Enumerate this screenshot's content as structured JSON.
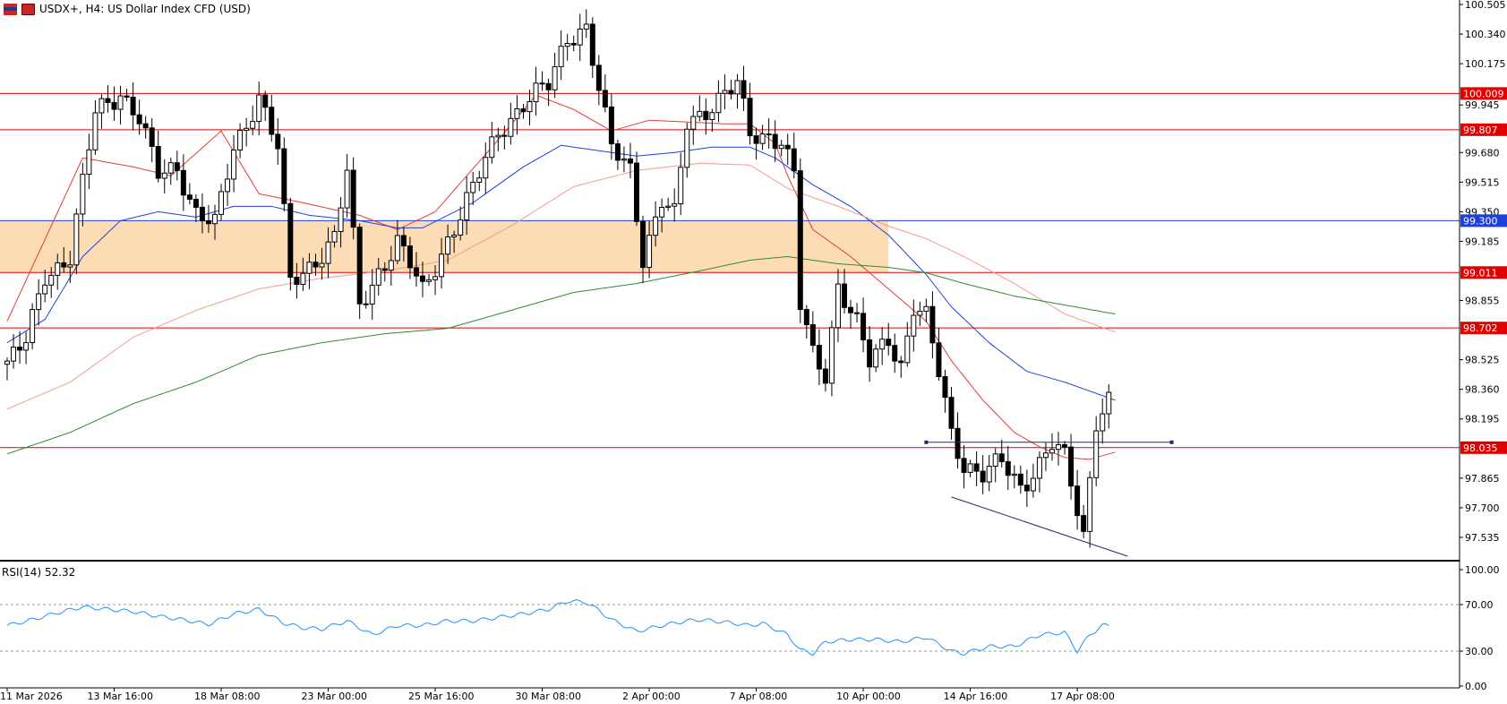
{
  "header": {
    "symbol": "USDX+",
    "timeframe": "H4:",
    "description": "US Dollar Index CFD (USD)",
    "icons": [
      "flag-icon",
      "chart-icon"
    ]
  },
  "chart_data": {
    "type": "candlestick",
    "price_axis": {
      "ylim": [
        97.41,
        100.52
      ],
      "ticks": [
        100.505,
        100.34,
        100.175,
        99.945,
        99.68,
        99.515,
        99.35,
        99.185,
        98.855,
        98.525,
        98.36,
        98.195,
        97.865,
        97.7,
        97.535
      ]
    },
    "time_axis": {
      "bars": 200,
      "labels": [
        {
          "text": "11 Mar 2026",
          "bar": 0
        },
        {
          "text": "13 Mar 16:00",
          "bar": 17
        },
        {
          "text": "18 Mar 08:00",
          "bar": 34
        },
        {
          "text": "23 Mar 00:00",
          "bar": 51
        },
        {
          "text": "25 Mar 16:00",
          "bar": 68
        },
        {
          "text": "30 Mar 08:00",
          "bar": 85
        },
        {
          "text": "2 Apr 00:00",
          "bar": 102
        },
        {
          "text": "7 Apr 08:00",
          "bar": 119
        },
        {
          "text": "10 Apr 00:00",
          "bar": 136
        },
        {
          "text": "14 Apr 16:00",
          "bar": 153
        },
        {
          "text": "17 Apr 08:00",
          "bar": 170
        }
      ]
    },
    "horizontal_lines": [
      {
        "price": 100.009,
        "label": "100.009",
        "color": "#e00000"
      },
      {
        "price": 99.807,
        "label": "99.807",
        "color": "#e00000"
      },
      {
        "price": 99.3,
        "label": "99.300",
        "color": "#1f3fd9"
      },
      {
        "price": 99.011,
        "label": "99.011",
        "color": "#e00000"
      },
      {
        "price": 98.702,
        "label": "98.702",
        "color": "#e00000"
      },
      {
        "price": 98.035,
        "label": "98.035",
        "color": "#e00000"
      }
    ],
    "zone": {
      "from_bar": 0,
      "to_bar": 140,
      "top": 99.3,
      "bottom": 99.011,
      "color": "#fcdcb4"
    },
    "trendlines": [
      {
        "from": {
          "bar": 150,
          "price": 97.76
        },
        "to": {
          "bar": 178,
          "price": 97.43
        },
        "color": "#1f2a6b"
      },
      {
        "from": {
          "bar": 146,
          "price": 98.065
        },
        "to": {
          "bar": 185,
          "price": 98.065
        },
        "color": "#1f2a6b",
        "handles": true
      }
    ],
    "moving_averages": [
      {
        "key": "ma_fast",
        "color": "#e53935",
        "anchors": [
          [
            0,
            98.74
          ],
          [
            12,
            99.65
          ],
          [
            20,
            99.6
          ],
          [
            26,
            99.55
          ],
          [
            34,
            99.8
          ],
          [
            40,
            99.45
          ],
          [
            47,
            99.4
          ],
          [
            56,
            99.33
          ],
          [
            62,
            99.25
          ],
          [
            68,
            99.35
          ],
          [
            78,
            99.75
          ],
          [
            84,
            100.0
          ],
          [
            90,
            99.92
          ],
          [
            96,
            99.8
          ],
          [
            102,
            99.86
          ],
          [
            108,
            99.85
          ],
          [
            114,
            99.84
          ],
          [
            118,
            99.84
          ],
          [
            122,
            99.73
          ],
          [
            124,
            99.55
          ],
          [
            128,
            99.25
          ],
          [
            134,
            99.1
          ],
          [
            140,
            98.92
          ],
          [
            146,
            98.74
          ],
          [
            150,
            98.52
          ],
          [
            155,
            98.3
          ],
          [
            160,
            98.12
          ],
          [
            164,
            98.04
          ],
          [
            168,
            97.98
          ],
          [
            172,
            97.97
          ],
          [
            176,
            98.01
          ]
        ]
      },
      {
        "key": "ma_mid",
        "color": "#1f3fd9",
        "anchors": [
          [
            0,
            98.62
          ],
          [
            6,
            98.75
          ],
          [
            12,
            99.1
          ],
          [
            18,
            99.3
          ],
          [
            24,
            99.35
          ],
          [
            30,
            99.32
          ],
          [
            36,
            99.38
          ],
          [
            42,
            99.38
          ],
          [
            48,
            99.33
          ],
          [
            56,
            99.3
          ],
          [
            62,
            99.26
          ],
          [
            66,
            99.26
          ],
          [
            74,
            99.4
          ],
          [
            82,
            99.6
          ],
          [
            88,
            99.72
          ],
          [
            94,
            99.69
          ],
          [
            100,
            99.66
          ],
          [
            106,
            99.68
          ],
          [
            112,
            99.71
          ],
          [
            118,
            99.71
          ],
          [
            122,
            99.65
          ],
          [
            128,
            99.5
          ],
          [
            134,
            99.38
          ],
          [
            140,
            99.22
          ],
          [
            146,
            99.0
          ],
          [
            150,
            98.82
          ],
          [
            156,
            98.62
          ],
          [
            162,
            98.46
          ],
          [
            168,
            98.4
          ],
          [
            176,
            98.3
          ]
        ]
      },
      {
        "key": "ma_slow",
        "color": "#f39b8c",
        "anchors": [
          [
            0,
            98.25
          ],
          [
            10,
            98.4
          ],
          [
            20,
            98.65
          ],
          [
            30,
            98.8
          ],
          [
            40,
            98.92
          ],
          [
            50,
            98.98
          ],
          [
            60,
            99.02
          ],
          [
            70,
            99.08
          ],
          [
            80,
            99.27
          ],
          [
            90,
            99.49
          ],
          [
            100,
            99.58
          ],
          [
            110,
            99.62
          ],
          [
            118,
            99.61
          ],
          [
            124,
            99.48
          ],
          [
            132,
            99.38
          ],
          [
            140,
            99.27
          ],
          [
            146,
            99.2
          ],
          [
            152,
            99.1
          ],
          [
            160,
            98.95
          ],
          [
            168,
            98.78
          ],
          [
            176,
            98.68
          ]
        ]
      },
      {
        "key": "ma_long",
        "color": "#2e8b2e",
        "anchors": [
          [
            0,
            98.0
          ],
          [
            10,
            98.12
          ],
          [
            20,
            98.28
          ],
          [
            30,
            98.4
          ],
          [
            40,
            98.55
          ],
          [
            50,
            98.62
          ],
          [
            60,
            98.67
          ],
          [
            70,
            98.7
          ],
          [
            80,
            98.8
          ],
          [
            90,
            98.9
          ],
          [
            100,
            98.95
          ],
          [
            110,
            99.02
          ],
          [
            118,
            99.08
          ],
          [
            124,
            99.1
          ],
          [
            132,
            99.06
          ],
          [
            140,
            99.04
          ],
          [
            146,
            99.01
          ],
          [
            152,
            98.95
          ],
          [
            160,
            98.88
          ],
          [
            168,
            98.83
          ],
          [
            176,
            98.78
          ]
        ]
      }
    ],
    "candles_anchor_path": [
      [
        0,
        98.5
      ],
      [
        3,
        98.62
      ],
      [
        6,
        99.0
      ],
      [
        10,
        99.1
      ],
      [
        14,
        99.9
      ],
      [
        18,
        100.02
      ],
      [
        21,
        99.87
      ],
      [
        24,
        99.55
      ],
      [
        27,
        99.6
      ],
      [
        30,
        99.35
      ],
      [
        33,
        99.27
      ],
      [
        36,
        99.7
      ],
      [
        40,
        100.0
      ],
      [
        43,
        99.7
      ],
      [
        45,
        98.95
      ],
      [
        48,
        99.05
      ],
      [
        52,
        99.2
      ],
      [
        54,
        99.57
      ],
      [
        56,
        98.82
      ],
      [
        59,
        99.02
      ],
      [
        62,
        99.18
      ],
      [
        64,
        99.05
      ],
      [
        66,
        98.9
      ],
      [
        70,
        99.2
      ],
      [
        74,
        99.47
      ],
      [
        78,
        99.8
      ],
      [
        82,
        99.95
      ],
      [
        86,
        100.05
      ],
      [
        89,
        100.33
      ],
      [
        92,
        100.38
      ],
      [
        94,
        100.02
      ],
      [
        96,
        99.7
      ],
      [
        99,
        99.6
      ],
      [
        101,
        99.1
      ],
      [
        104,
        99.4
      ],
      [
        106,
        99.32
      ],
      [
        108,
        99.85
      ],
      [
        112,
        99.95
      ],
      [
        116,
        100.05
      ],
      [
        118,
        99.78
      ],
      [
        121,
        99.78
      ],
      [
        123,
        99.75
      ],
      [
        125,
        99.55
      ],
      [
        126,
        98.82
      ],
      [
        128,
        98.55
      ],
      [
        130,
        98.45
      ],
      [
        132,
        98.95
      ],
      [
        135,
        98.72
      ],
      [
        137,
        98.5
      ],
      [
        140,
        98.65
      ],
      [
        142,
        98.5
      ],
      [
        144,
        98.82
      ],
      [
        146,
        98.75
      ],
      [
        148,
        98.45
      ],
      [
        150,
        98.12
      ],
      [
        152,
        97.95
      ],
      [
        155,
        97.88
      ],
      [
        158,
        97.95
      ],
      [
        161,
        97.82
      ],
      [
        164,
        97.95
      ],
      [
        166,
        98.05
      ],
      [
        168,
        97.97
      ],
      [
        171,
        97.55
      ],
      [
        173,
        98.2
      ],
      [
        175,
        98.3
      ]
    ],
    "rsi": {
      "label": "RSI(14) 52.32",
      "levels": [
        70,
        30
      ],
      "ticks": [
        100.0,
        70.0,
        30.0,
        0.0
      ],
      "color": "#1e90ff",
      "anchors": [
        [
          0,
          52
        ],
        [
          4,
          57
        ],
        [
          8,
          63
        ],
        [
          12,
          68
        ],
        [
          16,
          66
        ],
        [
          20,
          64
        ],
        [
          24,
          60
        ],
        [
          28,
          57
        ],
        [
          32,
          53
        ],
        [
          36,
          62
        ],
        [
          40,
          66
        ],
        [
          44,
          54
        ],
        [
          47,
          50
        ],
        [
          50,
          49
        ],
        [
          54,
          56
        ],
        [
          58,
          44
        ],
        [
          62,
          52
        ],
        [
          66,
          52
        ],
        [
          70,
          56
        ],
        [
          74,
          56
        ],
        [
          78,
          59
        ],
        [
          82,
          62
        ],
        [
          86,
          66
        ],
        [
          89,
          73
        ],
        [
          92,
          72
        ],
        [
          94,
          65
        ],
        [
          96,
          57
        ],
        [
          100,
          47
        ],
        [
          104,
          52
        ],
        [
          108,
          56
        ],
        [
          110,
          57
        ],
        [
          114,
          55
        ],
        [
          118,
          52
        ],
        [
          120,
          54
        ],
        [
          124,
          44
        ],
        [
          126,
          31
        ],
        [
          128,
          28
        ],
        [
          130,
          38
        ],
        [
          134,
          40
        ],
        [
          138,
          40
        ],
        [
          142,
          38
        ],
        [
          146,
          42
        ],
        [
          150,
          30
        ],
        [
          152,
          28
        ],
        [
          156,
          34
        ],
        [
          160,
          34
        ],
        [
          164,
          44
        ],
        [
          168,
          46
        ],
        [
          170,
          30
        ],
        [
          172,
          44
        ],
        [
          174,
          52
        ],
        [
          175,
          52
        ]
      ]
    }
  }
}
